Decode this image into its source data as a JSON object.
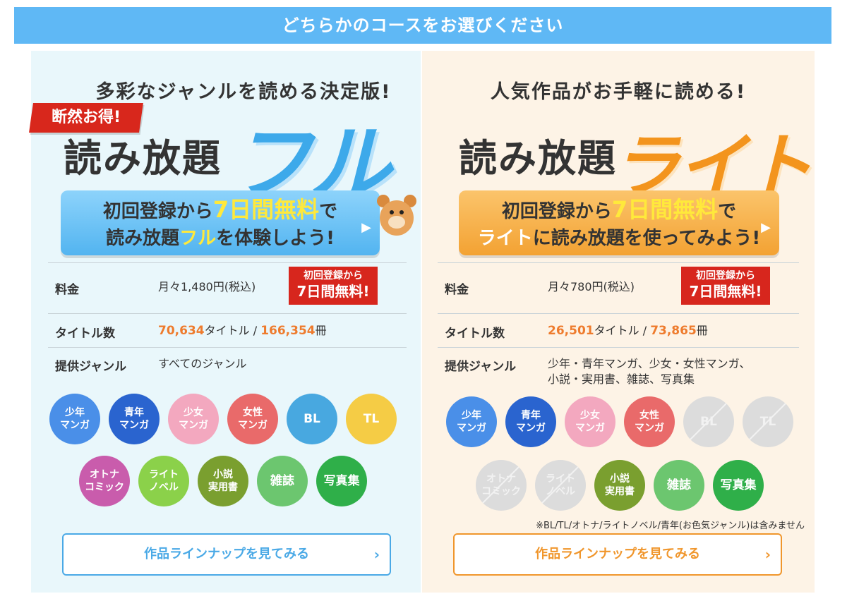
{
  "banner": "どちらかのコースをお選びください",
  "full": {
    "tagline": "多彩なジャンルを読める決定版!",
    "ribbon": "断然お得!",
    "main_title": "読み放題",
    "big_word": "フル",
    "cta": {
      "line1_prefix": "初回登録から",
      "line1_highlight": "7日間無料",
      "line1_suffix": "で",
      "line2_prefix": "読み放題",
      "line2_highlight": "フル",
      "line2_suffix": "を体験しよう!"
    },
    "price_label": "料金",
    "price_value": "月々1,480円(税込)",
    "badge_line1": "初回登録から",
    "badge_line2": "7日間無料!",
    "titles_label": "タイトル数",
    "titles_count": "70,634",
    "titles_unit": "タイトル /",
    "volumes_count": "166,354",
    "volumes_unit": "冊",
    "genre_label": "提供ジャンル",
    "genre_value": "すべてのジャンル",
    "genres": [
      {
        "label": "少年\nマンガ",
        "color": "#4a8fe8",
        "enabled": true
      },
      {
        "label": "青年\nマンガ",
        "color": "#2a64cf",
        "enabled": true
      },
      {
        "label": "少女\nマンガ",
        "color": "#f3a8bf",
        "enabled": true
      },
      {
        "label": "女性\nマンガ",
        "color": "#e96a6a",
        "enabled": true
      },
      {
        "label": "BL",
        "color": "#48a8e0",
        "enabled": true
      },
      {
        "label": "TL",
        "color": "#f5cc45",
        "enabled": true
      },
      {
        "label": "オトナ\nコミック",
        "color": "#c95cac",
        "enabled": true
      },
      {
        "label": "ライト\nノベル",
        "color": "#8bd14a",
        "enabled": true
      },
      {
        "label": "小説\n実用書",
        "color": "#7a9f2f",
        "enabled": true
      },
      {
        "label": "雑誌",
        "color": "#6cc66f",
        "enabled": true
      },
      {
        "label": "写真集",
        "color": "#2faf49",
        "enabled": true
      }
    ],
    "lineup_button": "作品ラインナップを見てみる"
  },
  "lite": {
    "tagline": "人気作品がお手軽に読める!",
    "main_title": "読み放題",
    "big_word": "ライト",
    "cta": {
      "line1_prefix": "初回登録から",
      "line1_highlight": "7日間無料",
      "line1_suffix": "で",
      "line2_prefix": "",
      "line2_highlight": "ライト",
      "line2_suffix": "に読み放題を使ってみよう!"
    },
    "price_label": "料金",
    "price_value": "月々780円(税込)",
    "badge_line1": "初回登録から",
    "badge_line2": "7日間無料!",
    "titles_label": "タイトル数",
    "titles_count": "26,501",
    "titles_unit": "タイトル /",
    "volumes_count": "73,865",
    "volumes_unit": "冊",
    "genre_label": "提供ジャンル",
    "genre_value": "少年・青年マンガ、少女・女性マンガ、\n小説・実用書、雑誌、写真集",
    "genres": [
      {
        "label": "少年\nマンガ",
        "color": "#4a8fe8",
        "enabled": true
      },
      {
        "label": "青年\nマンガ",
        "color": "#2a64cf",
        "enabled": true
      },
      {
        "label": "少女\nマンガ",
        "color": "#f3a8bf",
        "enabled": true
      },
      {
        "label": "女性\nマンガ",
        "color": "#e96a6a",
        "enabled": true
      },
      {
        "label": "BL",
        "color": "#dcdcdc",
        "enabled": false
      },
      {
        "label": "TL",
        "color": "#dcdcdc",
        "enabled": false
      },
      {
        "label": "オトナ\nコミック",
        "color": "#dcdcdc",
        "enabled": false
      },
      {
        "label": "ライト\nノベル",
        "color": "#dcdcdc",
        "enabled": false
      },
      {
        "label": "小説\n実用書",
        "color": "#7a9f2f",
        "enabled": true
      },
      {
        "label": "雑誌",
        "color": "#6cc66f",
        "enabled": true
      },
      {
        "label": "写真集",
        "color": "#2faf49",
        "enabled": true
      }
    ],
    "note": "※BL/TL/オトナ/ライトノベル/青年(お色気ジャンル)は含みません",
    "lineup_button": "作品ラインナップを見てみる"
  }
}
